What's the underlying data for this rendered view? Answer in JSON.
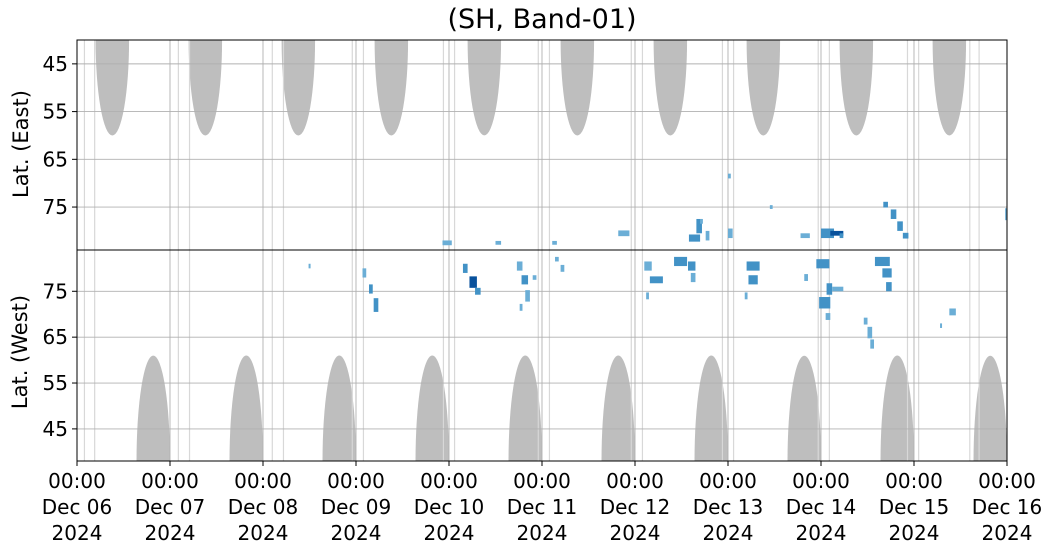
{
  "chart_data": {
    "type": "heatmap",
    "title": "(SH, Band-01)",
    "x_range": [
      "2024-12-06T00:00",
      "2024-12-16T00:00"
    ],
    "x_ticks": [
      {
        "time": "00:00",
        "date": "Dec 06",
        "year": "2024"
      },
      {
        "time": "00:00",
        "date": "Dec 07",
        "year": "2024"
      },
      {
        "time": "00:00",
        "date": "Dec 08",
        "year": "2024"
      },
      {
        "time": "00:00",
        "date": "Dec 09",
        "year": "2024"
      },
      {
        "time": "00:00",
        "date": "Dec 10",
        "year": "2024"
      },
      {
        "time": "00:00",
        "date": "Dec 11",
        "year": "2024"
      },
      {
        "time": "00:00",
        "date": "Dec 12",
        "year": "2024"
      },
      {
        "time": "00:00",
        "date": "Dec 13",
        "year": "2024"
      },
      {
        "time": "00:00",
        "date": "Dec 14",
        "year": "2024"
      },
      {
        "time": "00:00",
        "date": "Dec 15",
        "year": "2024"
      },
      {
        "time": "00:00",
        "date": "Dec 16",
        "year": "2024"
      }
    ],
    "panels": [
      {
        "id": "east",
        "ylabel": "Lat. (East)",
        "ylim": [
          40,
          84
        ],
        "inverted": true,
        "yticks": [
          45,
          55,
          65,
          75
        ]
      },
      {
        "id": "west",
        "ylabel": "Lat. (West)",
        "ylim": [
          38,
          84
        ],
        "inverted": false,
        "yticks": [
          45,
          55,
          65,
          75
        ]
      }
    ],
    "grid": true,
    "colors": {
      "sunlit": "#bebebe",
      "light": "#6baed6",
      "mid": "#4292c6",
      "dark": "#08519c",
      "grid": "#b0b0b0"
    },
    "sunlit_regions": [
      {
        "panel": "east",
        "center_day": 0.38,
        "half_width_day": 0.18,
        "edge_lat": 60
      },
      {
        "panel": "east",
        "center_day": 1.38,
        "half_width_day": 0.18,
        "edge_lat": 60
      },
      {
        "panel": "east",
        "center_day": 2.38,
        "half_width_day": 0.18,
        "edge_lat": 60
      },
      {
        "panel": "east",
        "center_day": 3.38,
        "half_width_day": 0.18,
        "edge_lat": 60
      },
      {
        "panel": "east",
        "center_day": 4.38,
        "half_width_day": 0.18,
        "edge_lat": 60
      },
      {
        "panel": "east",
        "center_day": 5.38,
        "half_width_day": 0.18,
        "edge_lat": 60
      },
      {
        "panel": "east",
        "center_day": 6.38,
        "half_width_day": 0.18,
        "edge_lat": 60
      },
      {
        "panel": "east",
        "center_day": 7.38,
        "half_width_day": 0.18,
        "edge_lat": 60
      },
      {
        "panel": "east",
        "center_day": 8.38,
        "half_width_day": 0.18,
        "edge_lat": 60
      },
      {
        "panel": "east",
        "center_day": 9.38,
        "half_width_day": 0.18,
        "edge_lat": 60
      },
      {
        "panel": "west",
        "center_day": 0.82,
        "half_width_day": 0.18,
        "edge_lat": 61
      },
      {
        "panel": "west",
        "center_day": 1.82,
        "half_width_day": 0.18,
        "edge_lat": 61
      },
      {
        "panel": "west",
        "center_day": 2.82,
        "half_width_day": 0.18,
        "edge_lat": 61
      },
      {
        "panel": "west",
        "center_day": 3.82,
        "half_width_day": 0.18,
        "edge_lat": 61
      },
      {
        "panel": "west",
        "center_day": 4.82,
        "half_width_day": 0.18,
        "edge_lat": 61
      },
      {
        "panel": "west",
        "center_day": 5.82,
        "half_width_day": 0.18,
        "edge_lat": 61
      },
      {
        "panel": "west",
        "center_day": 6.82,
        "half_width_day": 0.18,
        "edge_lat": 61
      },
      {
        "panel": "west",
        "center_day": 7.82,
        "half_width_day": 0.18,
        "edge_lat": 61
      },
      {
        "panel": "west",
        "center_day": 8.82,
        "half_width_day": 0.18,
        "edge_lat": 61
      },
      {
        "panel": "west",
        "center_day": 9.82,
        "half_width_day": 0.18,
        "edge_lat": 61
      }
    ],
    "data_gaps_day": [
      0.08,
      0.19,
      1.09,
      1.21,
      2.1,
      2.22,
      2.96,
      3.08,
      3.94,
      4.06,
      4.96,
      5.08,
      5.96,
      6.08,
      6.94,
      7.06,
      7.97,
      8.09,
      8.93,
      9.05,
      9.6,
      9.7
    ],
    "cells": [
      {
        "panel": "east",
        "day": 3.93,
        "lat": 82.5,
        "w": 0.1,
        "h": 1.0,
        "level": "light"
      },
      {
        "panel": "east",
        "day": 4.5,
        "lat": 82.5,
        "w": 0.06,
        "h": 0.8,
        "level": "light"
      },
      {
        "panel": "east",
        "day": 5.11,
        "lat": 82.5,
        "w": 0.05,
        "h": 0.8,
        "level": "light"
      },
      {
        "panel": "east",
        "day": 5.82,
        "lat": 80.5,
        "w": 0.12,
        "h": 1.2,
        "level": "light"
      },
      {
        "panel": "east",
        "day": 6.58,
        "lat": 81.5,
        "w": 0.12,
        "h": 1.5,
        "level": "mid"
      },
      {
        "panel": "east",
        "day": 6.66,
        "lat": 79.0,
        "w": 0.06,
        "h": 3.0,
        "level": "mid"
      },
      {
        "panel": "east",
        "day": 6.7,
        "lat": 78.0,
        "w": 0.03,
        "h": 1.0,
        "level": "light"
      },
      {
        "panel": "east",
        "day": 6.76,
        "lat": 81.0,
        "w": 0.04,
        "h": 2.0,
        "level": "light"
      },
      {
        "panel": "east",
        "day": 7.0,
        "lat": 80.5,
        "w": 0.05,
        "h": 2.0,
        "level": "light"
      },
      {
        "panel": "east",
        "day": 7.0,
        "lat": 68.5,
        "w": 0.03,
        "h": 1.0,
        "level": "light"
      },
      {
        "panel": "east",
        "day": 7.45,
        "lat": 75.0,
        "w": 0.03,
        "h": 0.8,
        "level": "light"
      },
      {
        "panel": "east",
        "day": 7.78,
        "lat": 81.0,
        "w": 0.1,
        "h": 1.0,
        "level": "light"
      },
      {
        "panel": "east",
        "day": 8.0,
        "lat": 80.5,
        "w": 0.14,
        "h": 2.0,
        "level": "mid"
      },
      {
        "panel": "east",
        "day": 8.1,
        "lat": 80.5,
        "w": 0.14,
        "h": 1.0,
        "level": "dark"
      },
      {
        "panel": "east",
        "day": 8.2,
        "lat": 81.0,
        "w": 0.04,
        "h": 1.0,
        "level": "mid"
      },
      {
        "panel": "east",
        "day": 8.67,
        "lat": 74.5,
        "w": 0.05,
        "h": 1.2,
        "level": "mid"
      },
      {
        "panel": "east",
        "day": 8.75,
        "lat": 76.5,
        "w": 0.06,
        "h": 2.0,
        "level": "mid"
      },
      {
        "panel": "east",
        "day": 8.82,
        "lat": 79.0,
        "w": 0.06,
        "h": 2.0,
        "level": "mid"
      },
      {
        "panel": "east",
        "day": 8.88,
        "lat": 81.0,
        "w": 0.06,
        "h": 1.2,
        "level": "mid"
      },
      {
        "panel": "east",
        "day": 9.98,
        "lat": 76.5,
        "w": 0.02,
        "h": 2.5,
        "level": "light"
      },
      {
        "panel": "west",
        "day": 2.49,
        "lat": 80.5,
        "w": 0.02,
        "h": 1.0,
        "level": "light"
      },
      {
        "panel": "west",
        "day": 3.07,
        "lat": 79.0,
        "w": 0.04,
        "h": 2.0,
        "level": "light"
      },
      {
        "panel": "west",
        "day": 3.14,
        "lat": 75.5,
        "w": 0.04,
        "h": 2.0,
        "level": "mid"
      },
      {
        "panel": "west",
        "day": 3.19,
        "lat": 72.0,
        "w": 0.05,
        "h": 3.0,
        "level": "mid"
      },
      {
        "panel": "west",
        "day": 4.15,
        "lat": 80.0,
        "w": 0.05,
        "h": 2.0,
        "level": "mid"
      },
      {
        "panel": "west",
        "day": 4.22,
        "lat": 77.0,
        "w": 0.08,
        "h": 2.5,
        "level": "dark"
      },
      {
        "panel": "west",
        "day": 4.28,
        "lat": 75.0,
        "w": 0.06,
        "h": 1.5,
        "level": "mid"
      },
      {
        "panel": "west",
        "day": 4.73,
        "lat": 80.5,
        "w": 0.06,
        "h": 2.0,
        "level": "light"
      },
      {
        "panel": "west",
        "day": 4.78,
        "lat": 77.5,
        "w": 0.07,
        "h": 2.0,
        "level": "mid"
      },
      {
        "panel": "west",
        "day": 4.82,
        "lat": 74.0,
        "w": 0.05,
        "h": 2.5,
        "level": "light"
      },
      {
        "panel": "west",
        "day": 4.76,
        "lat": 71.5,
        "w": 0.03,
        "h": 1.5,
        "level": "light"
      },
      {
        "panel": "west",
        "day": 4.9,
        "lat": 78.0,
        "w": 0.04,
        "h": 1.0,
        "level": "light"
      },
      {
        "panel": "west",
        "day": 5.14,
        "lat": 82.0,
        "w": 0.04,
        "h": 1.0,
        "level": "light"
      },
      {
        "panel": "west",
        "day": 5.2,
        "lat": 80.0,
        "w": 0.04,
        "h": 1.5,
        "level": "light"
      },
      {
        "panel": "west",
        "day": 6.1,
        "lat": 80.5,
        "w": 0.08,
        "h": 2.0,
        "level": "light"
      },
      {
        "panel": "west",
        "day": 6.16,
        "lat": 77.5,
        "w": 0.14,
        "h": 1.5,
        "level": "mid"
      },
      {
        "panel": "west",
        "day": 6.12,
        "lat": 74.0,
        "w": 0.03,
        "h": 1.5,
        "level": "light"
      },
      {
        "panel": "west",
        "day": 6.42,
        "lat": 81.5,
        "w": 0.14,
        "h": 2.0,
        "level": "mid"
      },
      {
        "panel": "west",
        "day": 6.57,
        "lat": 80.5,
        "w": 0.08,
        "h": 2.0,
        "level": "mid"
      },
      {
        "panel": "west",
        "day": 6.6,
        "lat": 78.0,
        "w": 0.05,
        "h": 2.0,
        "level": "light"
      },
      {
        "panel": "west",
        "day": 7.2,
        "lat": 80.5,
        "w": 0.14,
        "h": 2.0,
        "level": "mid"
      },
      {
        "panel": "west",
        "day": 7.22,
        "lat": 77.5,
        "w": 0.1,
        "h": 2.0,
        "level": "mid"
      },
      {
        "panel": "west",
        "day": 7.18,
        "lat": 74.0,
        "w": 0.03,
        "h": 1.5,
        "level": "light"
      },
      {
        "panel": "west",
        "day": 7.82,
        "lat": 78.0,
        "w": 0.04,
        "h": 1.5,
        "level": "light"
      },
      {
        "panel": "west",
        "day": 7.95,
        "lat": 81.0,
        "w": 0.14,
        "h": 2.0,
        "level": "mid"
      },
      {
        "panel": "west",
        "day": 8.06,
        "lat": 75.5,
        "w": 0.06,
        "h": 2.5,
        "level": "mid"
      },
      {
        "panel": "west",
        "day": 7.98,
        "lat": 72.5,
        "w": 0.12,
        "h": 2.5,
        "level": "mid"
      },
      {
        "panel": "west",
        "day": 8.05,
        "lat": 69.5,
        "w": 0.05,
        "h": 1.5,
        "level": "light"
      },
      {
        "panel": "west",
        "day": 8.12,
        "lat": 75.5,
        "w": 0.12,
        "h": 1.0,
        "level": "light"
      },
      {
        "panel": "west",
        "day": 8.46,
        "lat": 68.5,
        "w": 0.04,
        "h": 1.5,
        "level": "light"
      },
      {
        "panel": "west",
        "day": 8.5,
        "lat": 66.0,
        "w": 0.05,
        "h": 2.5,
        "level": "light"
      },
      {
        "panel": "west",
        "day": 8.53,
        "lat": 63.5,
        "w": 0.04,
        "h": 2.0,
        "level": "light"
      },
      {
        "panel": "west",
        "day": 8.58,
        "lat": 81.5,
        "w": 0.16,
        "h": 2.0,
        "level": "mid"
      },
      {
        "panel": "west",
        "day": 8.66,
        "lat": 79.0,
        "w": 0.1,
        "h": 2.0,
        "level": "mid"
      },
      {
        "panel": "west",
        "day": 8.7,
        "lat": 76.0,
        "w": 0.06,
        "h": 2.0,
        "level": "mid"
      },
      {
        "panel": "west",
        "day": 9.38,
        "lat": 70.5,
        "w": 0.07,
        "h": 1.5,
        "level": "light"
      },
      {
        "panel": "west",
        "day": 9.28,
        "lat": 67.5,
        "w": 0.02,
        "h": 1.0,
        "level": "light"
      }
    ]
  }
}
